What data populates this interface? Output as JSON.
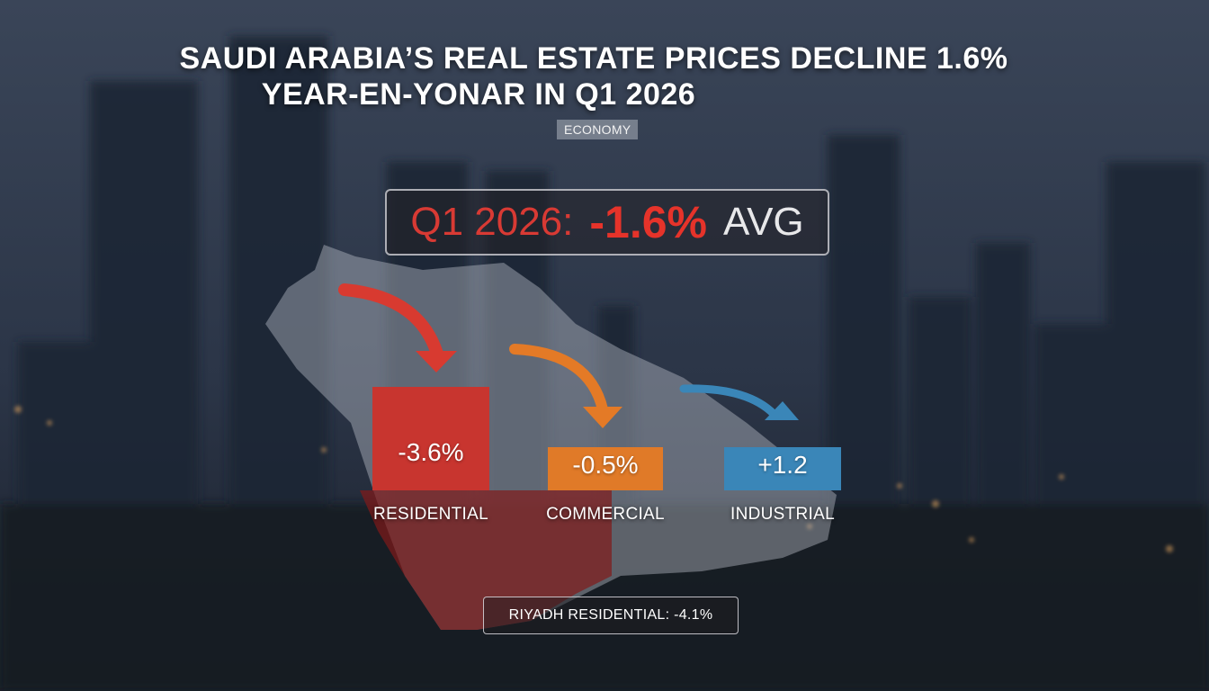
{
  "header": {
    "title_line_1": "SAUDI ARABIA’S REAL ESTATE PRICES DECLINE 1.6%",
    "title_line_2": "YEAR-EN-YONAR IN Q1 2026",
    "category": "ECONOMY"
  },
  "headline_stat": {
    "label": "Q1 2026:",
    "value": "-1.6%",
    "suffix": "AVG"
  },
  "chart_data": {
    "type": "bar",
    "title": "",
    "xlabel": "",
    "ylabel": "",
    "categories": [
      "RESIDENTIAL",
      "COMMERCIAL",
      "INDUSTRIAL"
    ],
    "values": [
      -3.6,
      -0.5,
      1.2
    ],
    "value_labels": [
      "-3.6%",
      "-0.5%",
      "+1.2"
    ],
    "colors": [
      "#c8352f",
      "#e07a28",
      "#3a86b8"
    ],
    "legend": "none",
    "grid": false
  },
  "note": {
    "text": "RIYADH RESIDENTIAL: -4.1%"
  },
  "colors": {
    "negative_strong": "#c8352f",
    "negative_mild": "#e07a28",
    "positive": "#3a86b8",
    "headline_red": "#e6332a"
  }
}
